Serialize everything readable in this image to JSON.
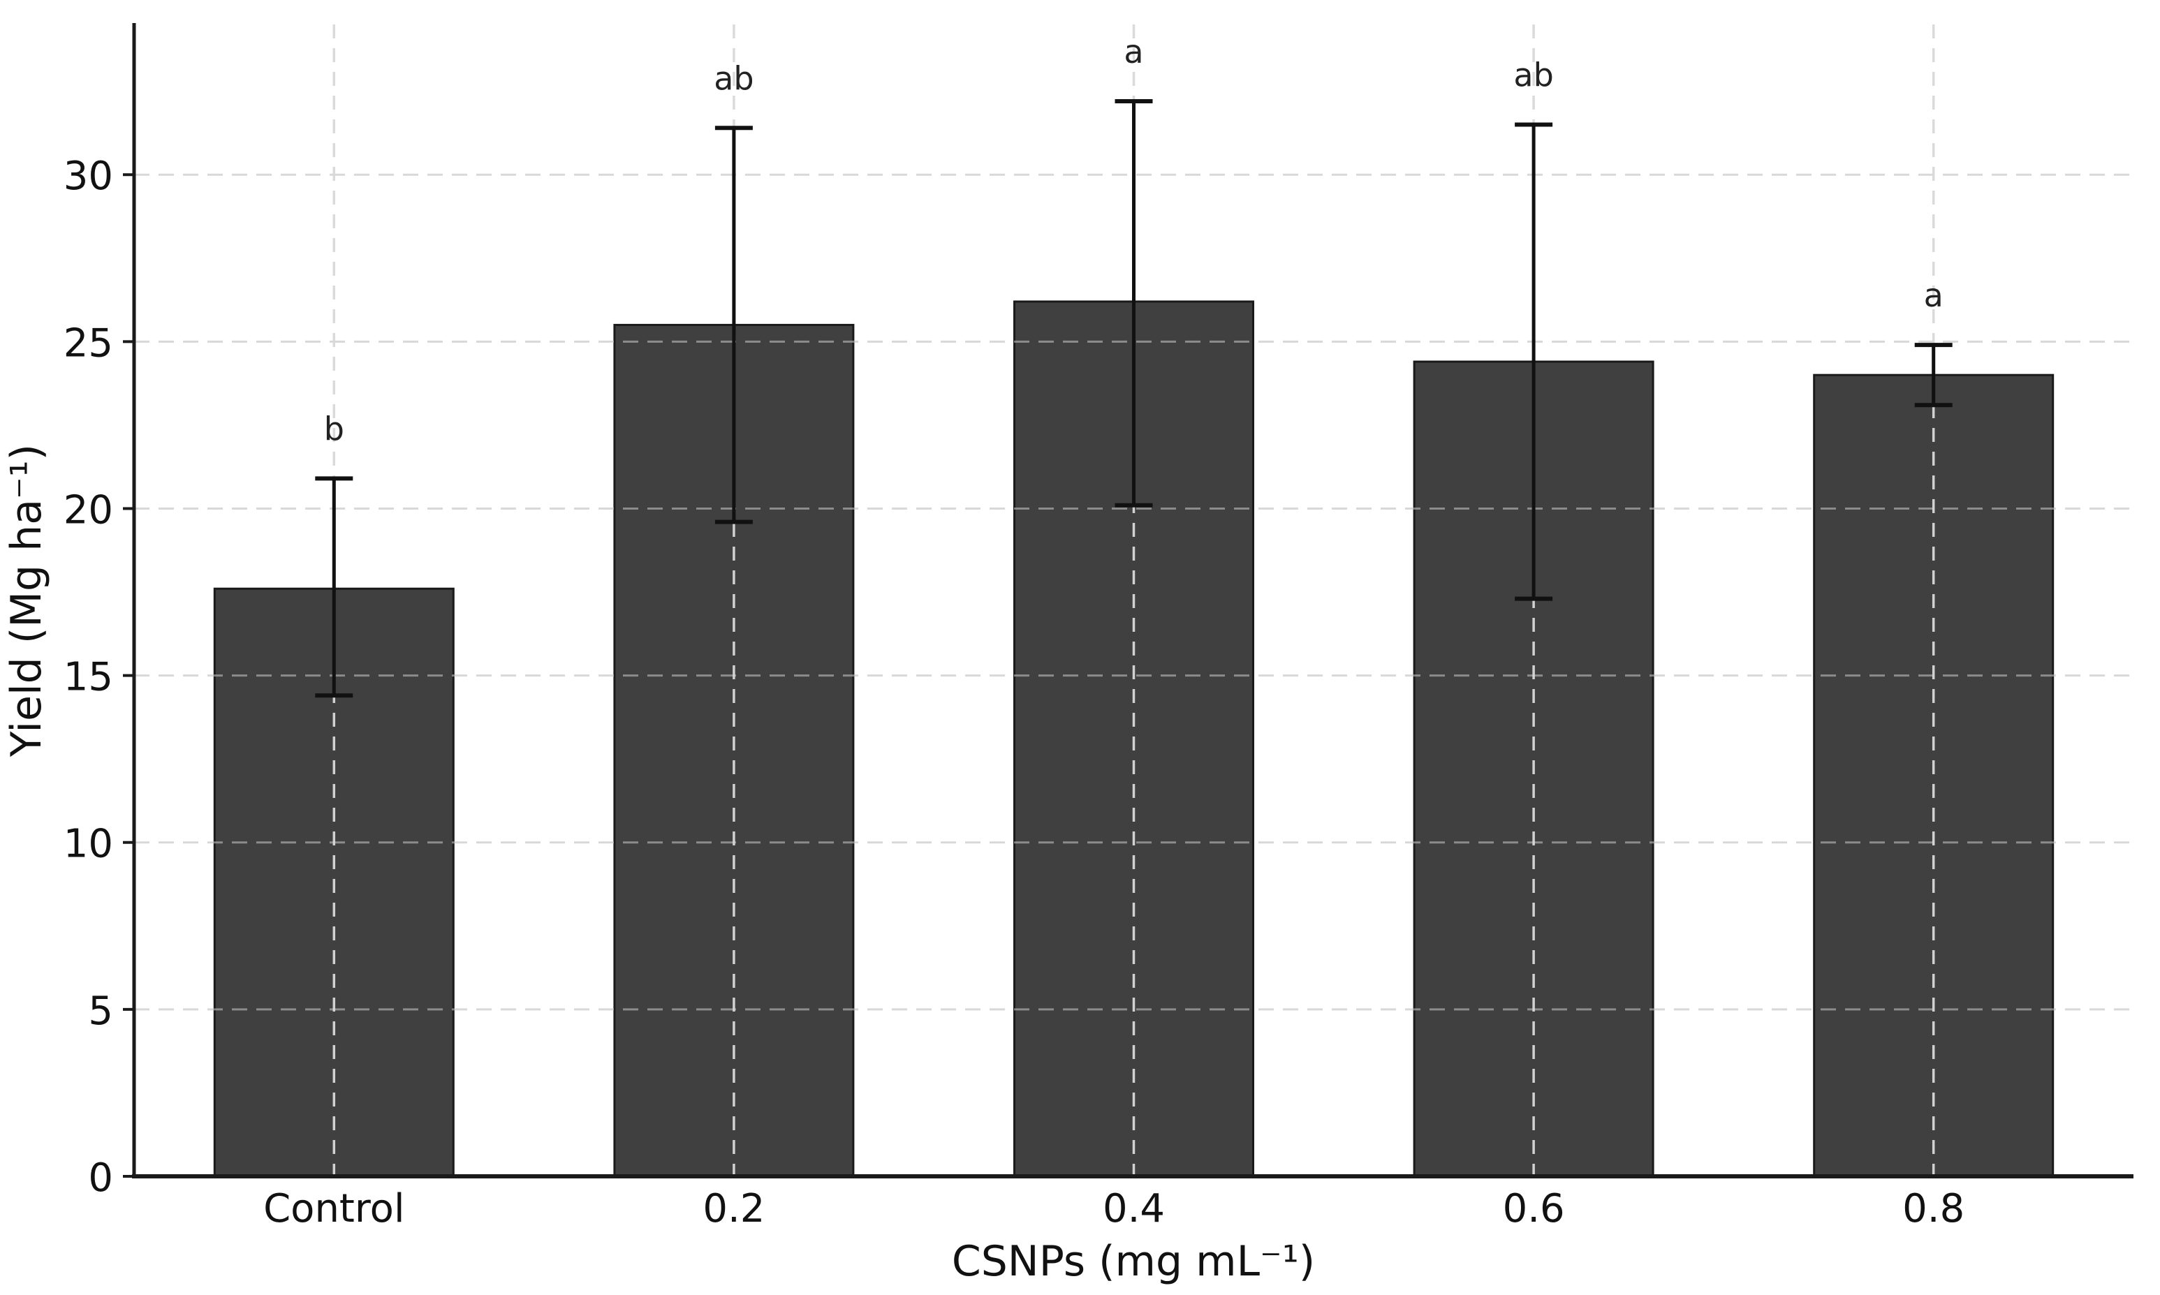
{
  "chart_data": {
    "type": "bar",
    "title": "",
    "xlabel": "CSNPs (mg mL⁻¹)",
    "ylabel": "Yield (Mg ha⁻¹)",
    "categories": [
      "Control",
      "0.2",
      "0.4",
      "0.6",
      "0.8"
    ],
    "series": [
      {
        "name": "Yield",
        "values": [
          17.6,
          25.5,
          26.2,
          24.4,
          24.0
        ],
        "error_low": [
          14.4,
          19.6,
          20.1,
          17.3,
          23.1
        ],
        "error_high": [
          20.9,
          31.4,
          32.2,
          31.5,
          24.9
        ]
      }
    ],
    "sig_letters": [
      "b",
      "ab",
      "a",
      "ab",
      "a"
    ],
    "yticks": [
      0,
      5,
      10,
      15,
      20,
      25,
      30
    ],
    "ytick_labels": [
      "0",
      "5",
      "10",
      "15",
      "20",
      "25",
      "30"
    ],
    "ylim": [
      0,
      34.5
    ],
    "grid": "dashed, horizontal and vertical, drawn over bars",
    "legend": "none",
    "colors": {
      "bar_fill": "#404040",
      "bar_edge": "#1a1a1a",
      "error_bar": "#111111",
      "grid_h": "#bfbfbf",
      "grid_v": "#d9d9d9",
      "spine": "#1a1a1a",
      "text": "#111111",
      "letter": "#222222",
      "background": "#ffffff"
    }
  }
}
